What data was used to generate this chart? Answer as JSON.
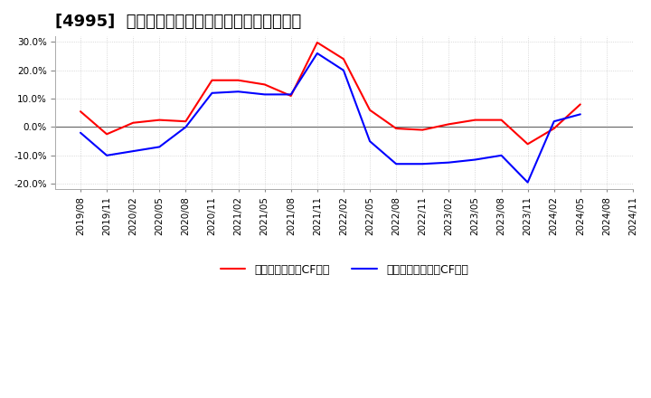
{
  "title": "[4995]  有利子負債キャッシュフロー比率の推移",
  "x_labels": [
    "2019/08",
    "2019/11",
    "2020/02",
    "2020/05",
    "2020/08",
    "2020/11",
    "2021/02",
    "2021/05",
    "2021/08",
    "2021/11",
    "2022/02",
    "2022/05",
    "2022/08",
    "2022/11",
    "2023/02",
    "2023/05",
    "2023/08",
    "2023/11",
    "2024/02",
    "2024/05",
    "2024/08",
    "2024/11"
  ],
  "red_values": [
    0.055,
    -0.025,
    0.015,
    0.025,
    0.02,
    0.165,
    0.165,
    0.15,
    0.11,
    0.298,
    0.24,
    0.06,
    -0.005,
    -0.01,
    0.01,
    0.025,
    0.025,
    -0.06,
    -0.005,
    0.08,
    null,
    null
  ],
  "blue_values": [
    -0.02,
    -0.1,
    -0.085,
    -0.07,
    0.0,
    0.12,
    0.125,
    0.115,
    0.115,
    0.26,
    0.2,
    -0.05,
    -0.13,
    -0.13,
    -0.125,
    -0.115,
    -0.1,
    -0.195,
    0.02,
    0.045,
    null,
    null
  ],
  "ylim": [
    -0.22,
    0.32
  ],
  "yticks": [
    -0.2,
    -0.1,
    0.0,
    0.1,
    0.2,
    0.3
  ],
  "red_label": "有利子負債営業CF比率",
  "blue_label": "有利子負債フリーCF比率",
  "bg_color": "#ffffff",
  "plot_bg_color": "#ffffff",
  "grid_color": "#bbbbbb",
  "title_fontsize": 13,
  "legend_fontsize": 9,
  "tick_fontsize": 7.5
}
